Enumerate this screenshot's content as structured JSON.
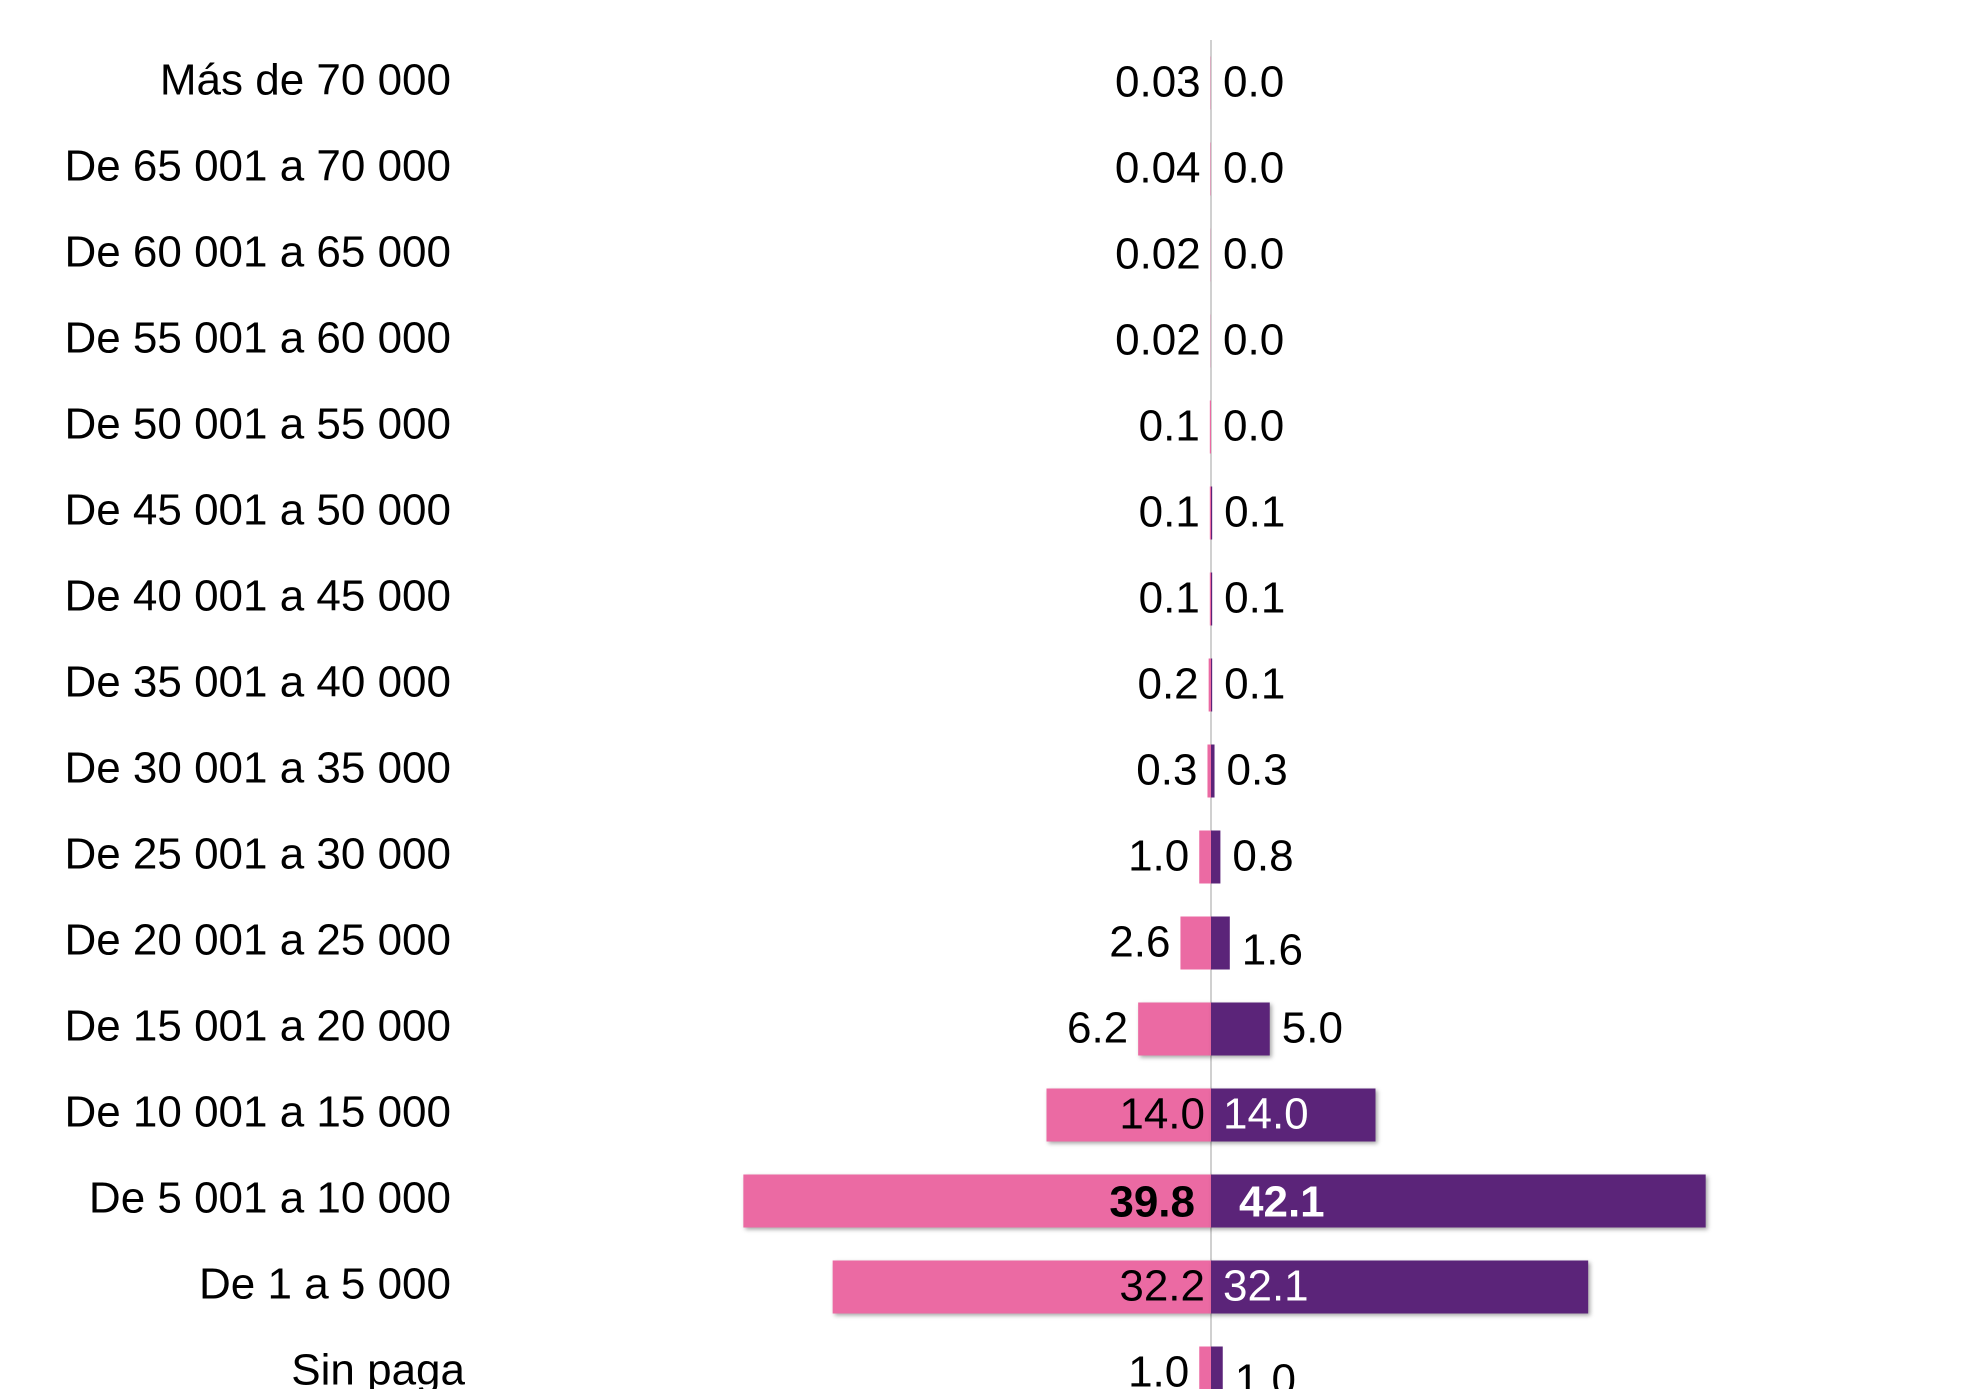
{
  "chart_data": {
    "type": "butterfly",
    "categories": [
      "Más de 70 000",
      "De 65 001 a 70 000",
      "De 60 001 a 65 000",
      "De 55 001 a 60 000",
      "De 50 001 a 55 000",
      "De 45 001 a 50 000",
      "De 40 001 a 45 000",
      "De 35 001 a 40 000",
      "De 30 001 a 35 000",
      "De 25 001 a 30 000",
      "De 20 001 a 25 000",
      "De 15 001 a 20 000",
      "De 10 001 a 15 000",
      "De 5 001 a 10 000",
      "De 1 a 5 000",
      "Sin paga"
    ],
    "series": [
      {
        "color": "#eb6aa3",
        "side": "left",
        "values": [
          0.03,
          0.04,
          0.02,
          0.02,
          0.1,
          0.1,
          0.1,
          0.2,
          0.3,
          1.0,
          2.6,
          6.2,
          14.0,
          39.8,
          32.2,
          1.0
        ],
        "value_labels": [
          "0.03",
          "0.04",
          "0.02",
          "0.02",
          "0.1",
          "0.1",
          "0.1",
          "0.2",
          "0.3",
          "1.0",
          "2.6",
          "6.2",
          "14.0",
          "39.8",
          "32.2",
          "1.0"
        ]
      },
      {
        "color": "#5b2479",
        "side": "right",
        "values": [
          0.0,
          0.0,
          0.0,
          0.0,
          0.0,
          0.1,
          0.1,
          0.1,
          0.3,
          0.8,
          1.6,
          5.0,
          14.0,
          42.1,
          32.1,
          1.0
        ],
        "value_labels": [
          "0.0",
          "0.0",
          "0.0",
          "0.0",
          "0.0",
          "0.1",
          "0.1",
          "0.1",
          "0.3",
          "0.8",
          "1.6",
          "5.0",
          "14.0",
          "42.1",
          "32.1",
          "1.0"
        ]
      }
    ]
  }
}
